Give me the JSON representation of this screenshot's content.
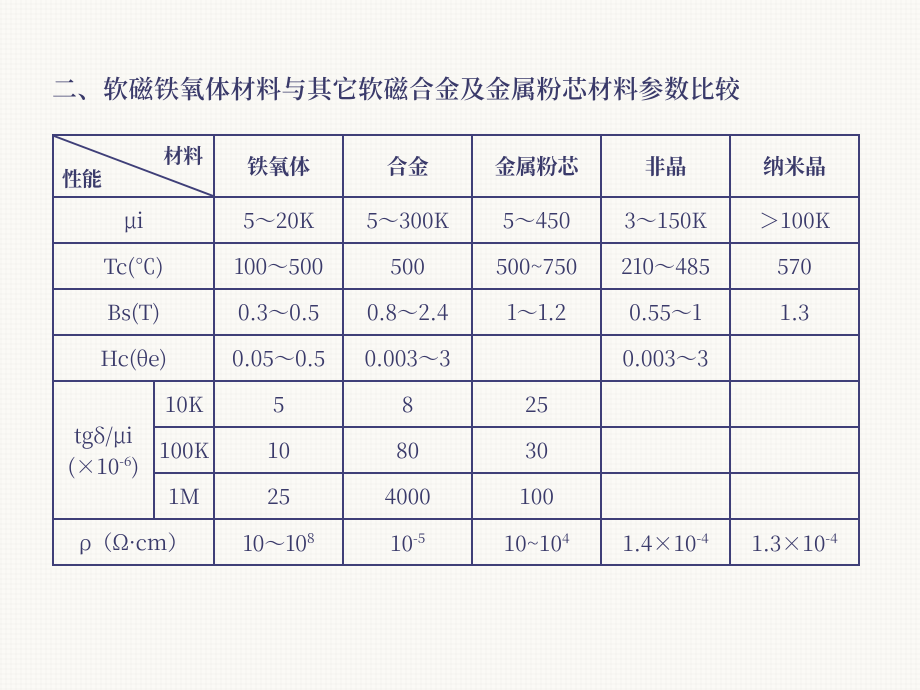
{
  "title": "二、软磁铁氧体材料与其它软磁合金及金属粉芯材料参数比较",
  "header": {
    "diag_material": "材料",
    "diag_property": "性能",
    "cols": [
      "铁氧体",
      "合金",
      "金属粉芯",
      "非晶",
      "纳米晶"
    ]
  },
  "rows_simple": [
    {
      "label": "μi",
      "vals": [
        "5～20K",
        "5～300K",
        "5～450",
        "3～150K",
        "＞100K"
      ]
    },
    {
      "label": "Tc(℃)",
      "vals": [
        "100～500",
        "500",
        "500~750",
        "210～485",
        "570"
      ]
    },
    {
      "label": "Bs(T)",
      "vals": [
        "0.3～0.5",
        "0.8～2.4",
        "1～1.2",
        "0.55～1",
        "1.3"
      ]
    },
    {
      "label": "Hc(θe)",
      "vals": [
        "0.05～0.5",
        "0.003～3",
        "",
        "0.003～3",
        ""
      ]
    }
  ],
  "tgd": {
    "group_label_html": "tgδ/μi<br>(×10<sup>-6</sup>)",
    "subrows": [
      {
        "freq": "10K",
        "vals": [
          "5",
          "8",
          "25",
          "",
          ""
        ]
      },
      {
        "freq": "100K",
        "vals": [
          "10",
          "80",
          "30",
          "",
          ""
        ]
      },
      {
        "freq": "1M",
        "vals": [
          "25",
          "4000",
          "100",
          "",
          ""
        ]
      }
    ]
  },
  "rho": {
    "label": "ρ（Ω·cm）",
    "vals_html": [
      "10～10<sup>8</sup>",
      "10<sup>-5</sup>",
      "10~10<sup>4</sup>",
      "1.4×10<sup>-4</sup>",
      "1.3×10<sup>-4</sup>"
    ]
  },
  "style": {
    "border_color": "#3f3f78",
    "text_color": "#3a3a6a",
    "bg": "#fbfaf6",
    "title_fontsize": 25,
    "cell_fontsize": 21
  }
}
